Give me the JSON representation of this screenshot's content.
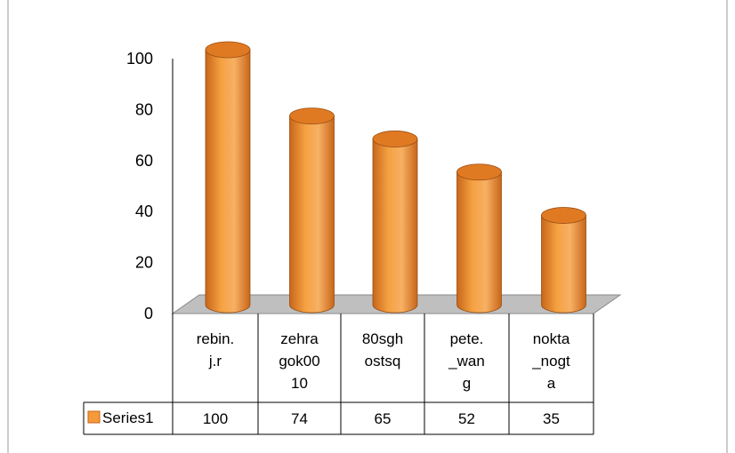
{
  "colors": {
    "bar_body": "#F5A142",
    "bar_dark": "#C8661A",
    "bar_top": "#E07A22",
    "floor": "#BFBFBF",
    "axis": "#000000",
    "table_border": "#000000",
    "legend_swatch": "#F59A3B"
  },
  "chart_data": {
    "type": "bar",
    "title": "",
    "categories": [
      "rebin.\nj.r",
      "zehra\ngok00\n10",
      "80sgh\nostsq",
      "pete.\n_wan\ng",
      "nokta\n_nogt\na"
    ],
    "series": [
      {
        "name": "Series1",
        "values": [
          100,
          74,
          65,
          52,
          35
        ]
      }
    ],
    "value_labels": [
      "100",
      "74",
      "65",
      "52",
      "35"
    ],
    "yticks": [
      "0",
      "20",
      "40",
      "60",
      "80",
      "100"
    ],
    "ylim": [
      0,
      100
    ],
    "xlabel": "",
    "ylabel": "",
    "grid": false,
    "legend": "data-table",
    "bar_shape": "cylinder"
  }
}
